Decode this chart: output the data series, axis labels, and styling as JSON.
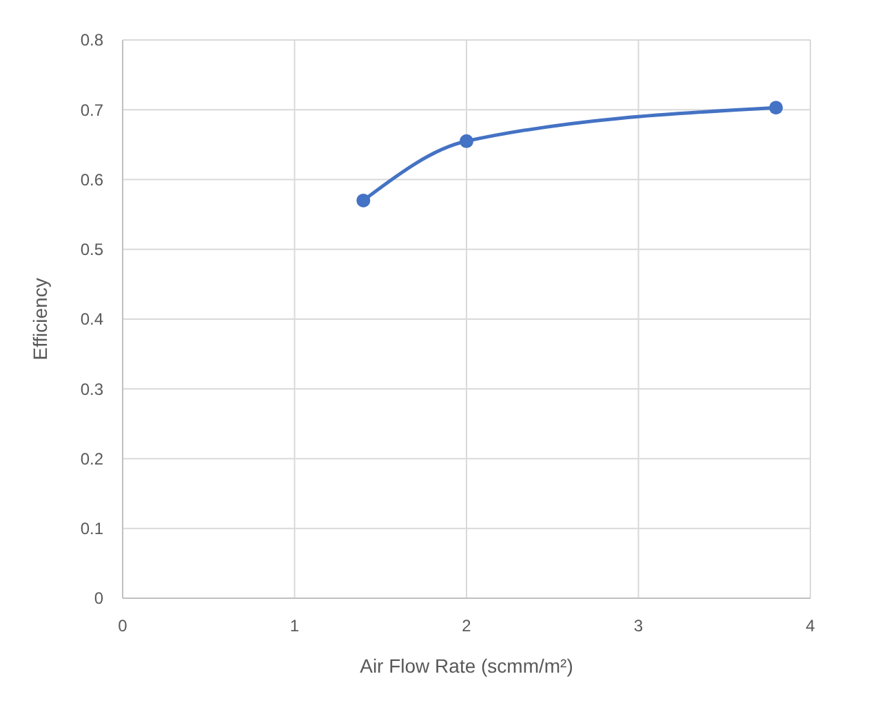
{
  "chart_data": {
    "type": "line",
    "xlabel": "Air Flow Rate (scmm/m²)",
    "ylabel": "Efficiency",
    "series": [
      {
        "color": "#4472c4",
        "x": [
          1.4,
          2,
          3.8
        ],
        "values": [
          0.57,
          0.655,
          0.703
        ]
      }
    ],
    "xlim": [
      0,
      4
    ],
    "xticks": [
      0,
      1,
      2,
      3,
      4
    ],
    "ylim": [
      0,
      0.8
    ],
    "yticks": [
      0,
      0.1,
      0.2,
      0.3,
      0.4,
      0.5,
      0.6,
      0.7,
      0.8
    ],
    "grid": true,
    "marker": "circle",
    "line_style": "solid"
  }
}
